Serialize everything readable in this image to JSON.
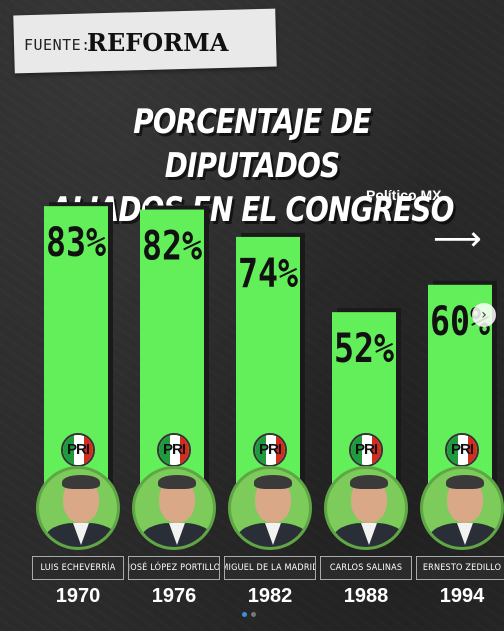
{
  "source": {
    "label": "FUENTE:",
    "name": "REFORMA"
  },
  "brand": "Político MX",
  "arrow_glyph": "⟶",
  "next_glyph": "›",
  "colors": {
    "bar": "#63ef59",
    "bar_shadow": "#1a1a1a",
    "background": "#2b2b2b"
  },
  "chart_data": {
    "type": "bar",
    "title_lines": [
      "PORCENTAJE DE DIPUTADOS",
      "ALIADOS EN EL CONGRESO"
    ],
    "categories": [
      "1970",
      "1976",
      "1982",
      "1988",
      "1994"
    ],
    "names": [
      "LUIS ECHEVERRÍA",
      "JOSÉ LÓPEZ PORTILLO",
      "MIGUEL DE LA MADRID",
      "CARLOS SALINAS",
      "ERNESTO ZEDILLO"
    ],
    "values": [
      83,
      82,
      74,
      52,
      60
    ],
    "value_labels": [
      "83%",
      "82%",
      "74%",
      "52%",
      "60%"
    ],
    "party_logo": "PRI",
    "ylim": [
      0,
      100
    ],
    "grid": false,
    "legend": "none"
  },
  "carousel": {
    "pages": 2,
    "active": 0
  }
}
